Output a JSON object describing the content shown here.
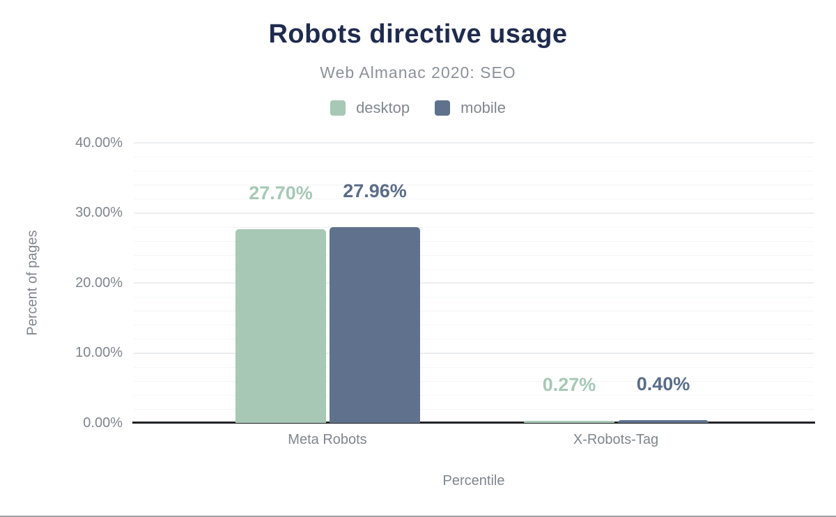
{
  "header": {
    "title": "Robots directive usage",
    "subtitle": "Web Almanac 2020: SEO"
  },
  "legend": [
    {
      "label": "desktop",
      "color": "#a6c8b5"
    },
    {
      "label": "mobile",
      "color": "#5f718c"
    }
  ],
  "chart_data": {
    "type": "bar",
    "title": "Robots directive usage",
    "subtitle": "Web Almanac 2020: SEO",
    "categories": [
      "Meta Robots",
      "X-Robots-Tag"
    ],
    "series": [
      {
        "name": "desktop",
        "color": "#a6c8b5",
        "label_color": "#a6c8b5",
        "values": [
          27.7,
          0.27
        ],
        "labels": [
          "27.70%",
          "0.27%"
        ]
      },
      {
        "name": "mobile",
        "color": "#5f718c",
        "label_color": "#5a6c88",
        "values": [
          27.96,
          0.4
        ],
        "labels": [
          "27.96%",
          "0.40%"
        ]
      }
    ],
    "xlabel": "Percentile",
    "ylabel": "Percent of pages",
    "ylim": [
      0,
      40
    ],
    "yticks": [
      {
        "value": 0,
        "label": "0.00%"
      },
      {
        "value": 10,
        "label": "10.00%"
      },
      {
        "value": 20,
        "label": "20.00%"
      },
      {
        "value": 30,
        "label": "30.00%"
      },
      {
        "value": 40,
        "label": "40.00%"
      }
    ],
    "minor_grid_step_pct": 2,
    "major_grid_step_pct": 10,
    "grid": true,
    "legend_position": "top"
  },
  "colors": {
    "title": "#1f2b4e",
    "muted_text": "#7e858d",
    "axis_line": "#1f2023",
    "grid_minor": "#f4f5f6",
    "grid_major": "#ebedef",
    "figure_bottom_border": "#9aa0a6"
  }
}
